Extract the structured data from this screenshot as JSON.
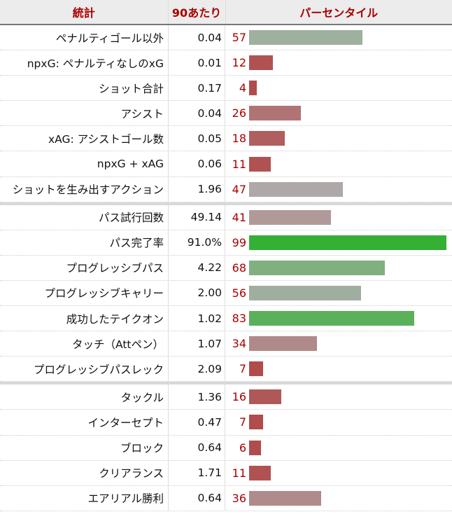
{
  "header": {
    "stat": "統計",
    "per90": "90あたり",
    "percentile": "パーセンタイル"
  },
  "groups": [
    [
      {
        "stat": "ペナルティゴール以外",
        "per90": "0.04",
        "percentile": 57,
        "color": "#9fb09e"
      },
      {
        "stat": "npxG: ペナルティなしのxG",
        "per90": "0.01",
        "percentile": 12,
        "color": "#b05252"
      },
      {
        "stat": "ショット合計",
        "per90": "0.17",
        "percentile": 4,
        "color": "#b04c4c"
      },
      {
        "stat": "アシスト",
        "per90": "0.04",
        "percentile": 26,
        "color": "#b07474"
      },
      {
        "stat": "xAG: アシストゴール数",
        "per90": "0.05",
        "percentile": 18,
        "color": "#b05e5e"
      },
      {
        "stat": "npxG + xAG",
        "per90": "0.06",
        "percentile": 11,
        "color": "#b05252"
      },
      {
        "stat": "ショットを生み出すアクション",
        "per90": "1.96",
        "percentile": 47,
        "color": "#aea8a8"
      }
    ],
    [
      {
        "stat": "パス試行回数",
        "per90": "49.14",
        "percentile": 41,
        "color": "#b09a99"
      },
      {
        "stat": "パス完了率",
        "per90": "91.0%",
        "percentile": 99,
        "color": "#34b034"
      },
      {
        "stat": "プログレッシブパス",
        "per90": "4.22",
        "percentile": 68,
        "color": "#80b080"
      },
      {
        "stat": "プログレッシブキャリー",
        "per90": "2.00",
        "percentile": 56,
        "color": "#a0ae9f"
      },
      {
        "stat": "成功したテイクオン",
        "per90": "1.02",
        "percentile": 83,
        "color": "#5bb05a"
      },
      {
        "stat": "タッチ（Attペン）",
        "per90": "1.07",
        "percentile": 34,
        "color": "#b08a8a"
      },
      {
        "stat": "プログレッシブパスレック",
        "per90": "2.09",
        "percentile": 7,
        "color": "#b04c4c"
      }
    ],
    [
      {
        "stat": "タックル",
        "per90": "1.36",
        "percentile": 16,
        "color": "#b05858"
      },
      {
        "stat": "インターセプト",
        "per90": "0.47",
        "percentile": 7,
        "color": "#b04c4c"
      },
      {
        "stat": "ブロック",
        "per90": "0.64",
        "percentile": 6,
        "color": "#b04c4c"
      },
      {
        "stat": "クリアランス",
        "per90": "1.71",
        "percentile": 11,
        "color": "#b05252"
      },
      {
        "stat": "エアリアル勝利",
        "per90": "0.64",
        "percentile": 36,
        "color": "#b08b8b"
      }
    ]
  ]
}
